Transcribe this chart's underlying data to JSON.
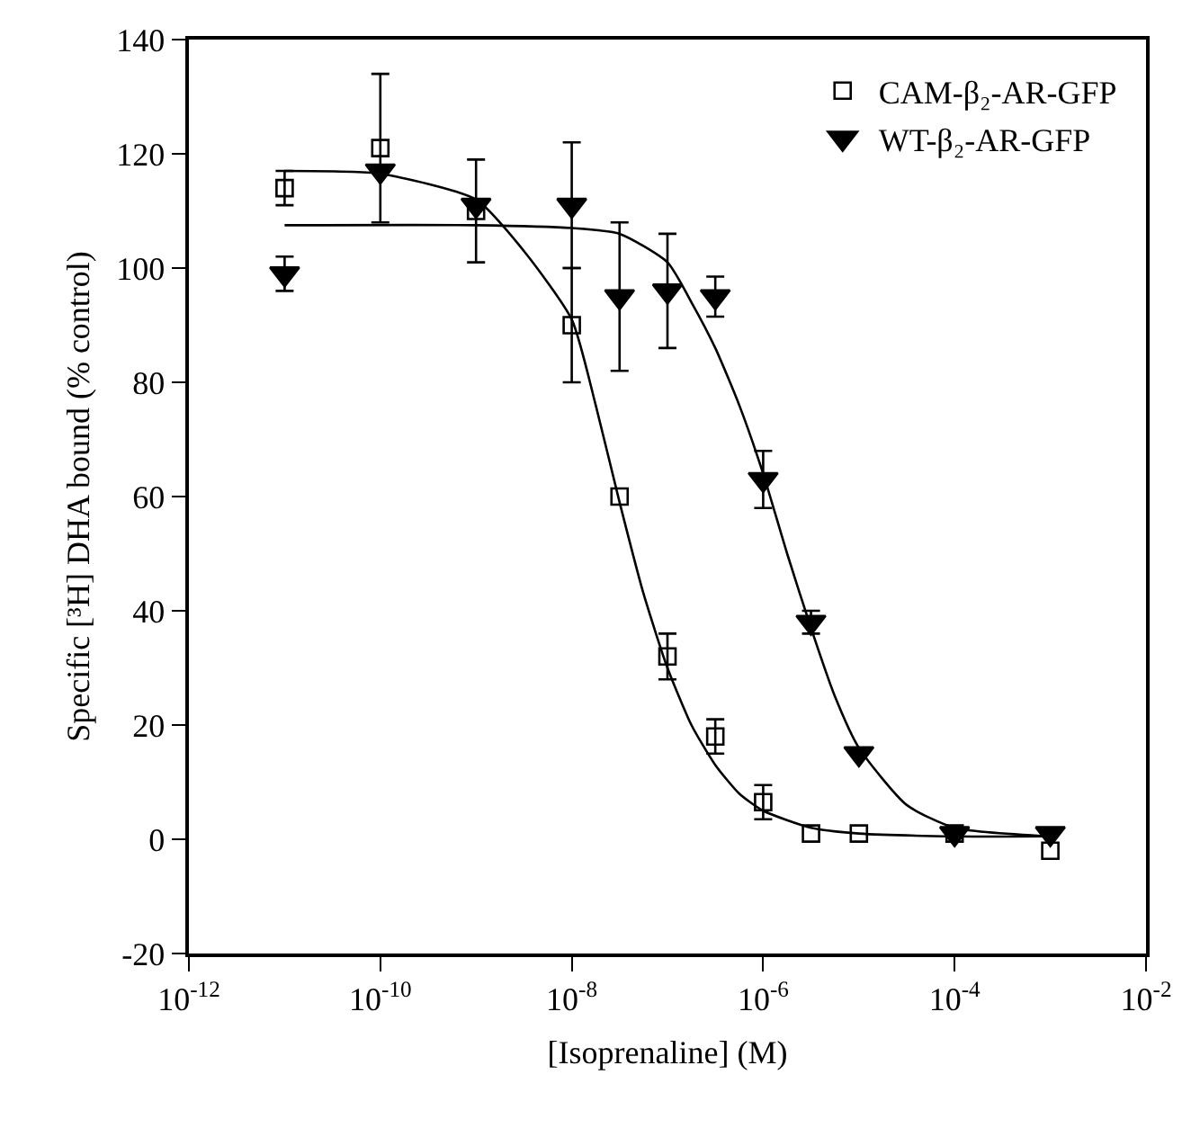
{
  "chart_data": {
    "type": "scatter",
    "xlabel": "[Isoprenaline] (M)",
    "ylabel": "Specific [³H] DHA bound (% control)",
    "log": "x",
    "grid": false,
    "legend": "top right",
    "xlim": [
      1e-12,
      0.01
    ],
    "xticks": [
      {
        "value": 1e-12,
        "label": "10$^{-12}$"
      },
      {
        "value": 1e-10,
        "label": "10$^{-10}$"
      },
      {
        "value": 1e-08,
        "label": "10$^{-8}$"
      },
      {
        "value": 1e-06,
        "label": "10$^{-6}$"
      },
      {
        "value": 0.0001,
        "label": "10$^{-4}$"
      },
      {
        "value": 0.01,
        "label": "10$^{-2}$"
      }
    ],
    "ylim": [
      -20,
      140
    ],
    "yticks": [
      -20,
      0,
      20,
      40,
      60,
      80,
      100,
      120,
      140
    ],
    "series": [
      {
        "name": "CAM-β₂-AR-GFP",
        "marker": "square",
        "color": "#000000",
        "x": [
          1e-11,
          1e-10,
          1e-09,
          1e-08,
          3.16e-08,
          1e-07,
          3.16e-07,
          1e-06,
          3.16e-06,
          1e-05,
          0.0001,
          0.001
        ],
        "values": [
          114,
          121,
          110,
          90,
          60,
          32,
          18,
          6.5,
          1,
          1,
          1,
          -2
        ],
        "errors": [
          3,
          13,
          9,
          10,
          null,
          4,
          3,
          3,
          null,
          null,
          null,
          null
        ]
      },
      {
        "name": "WT-β₂-AR-GFP",
        "marker": "triangle",
        "color": "#000000",
        "x": [
          1e-11,
          1e-10,
          1e-09,
          1e-08,
          3.16e-08,
          1e-07,
          3.16e-07,
          1e-06,
          3.16e-06,
          1e-05,
          0.0001,
          0.001
        ],
        "values": [
          99,
          117,
          111,
          111,
          95,
          96,
          95,
          63,
          38,
          15,
          1,
          1
        ],
        "errors": [
          3,
          null,
          null,
          11,
          13,
          10,
          3.5,
          5,
          2,
          null,
          null,
          null
        ]
      },
      {
        "type": "line",
        "color": "#000000",
        "marker": "none",
        "x": [
          1e-11,
          1e-10,
          1e-09,
          3.16e-09,
          1e-08,
          1.78e-08,
          3.16e-08,
          5.62e-08,
          1e-07,
          1.78e-07,
          3.16e-07,
          5.62e-07,
          1e-06,
          3.16e-06,
          1e-05,
          0.0001,
          0.001
        ],
        "values": [
          117,
          116.5,
          112,
          103,
          91,
          76,
          59,
          43,
          30,
          20,
          13,
          8,
          5,
          2,
          1,
          0.5,
          0.5
        ]
      },
      {
        "type": "line",
        "color": "#000000",
        "marker": "none",
        "x": [
          1e-11,
          1e-09,
          1e-08,
          3.16e-08,
          1e-07,
          1.78e-07,
          3.16e-07,
          5.62e-07,
          1e-06,
          1.78e-06,
          3.16e-06,
          5.62e-06,
          1e-05,
          3.16e-05,
          0.0001,
          0.001
        ],
        "values": [
          107.5,
          107.5,
          107,
          106,
          101,
          94,
          86,
          76,
          64,
          50,
          37,
          25,
          16,
          6,
          2,
          0.5
        ]
      }
    ]
  }
}
